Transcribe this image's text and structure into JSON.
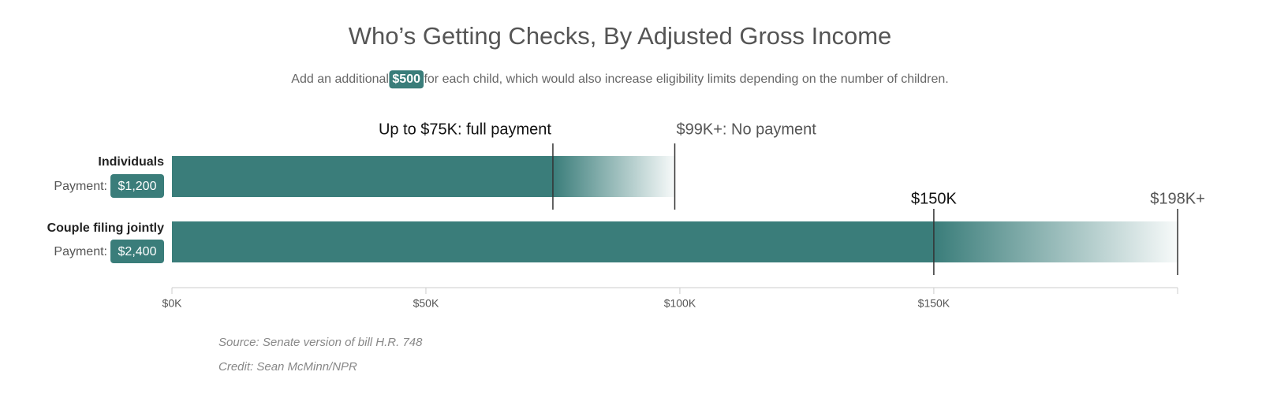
{
  "chart_data": {
    "type": "phaseout-bar",
    "title": "Who’s Getting Checks, By Adjusted Gross Income",
    "subtitle_parts": [
      "Add an additional",
      "$500",
      "for each child, which would also increase eligibility limits depending on the number of children."
    ],
    "payment_prefix": "Payment:",
    "categories": [
      "Individuals",
      "Couple filing jointly"
    ],
    "payments": [
      1200,
      2400
    ],
    "payment_labels": [
      "$1,200",
      "$2,400"
    ],
    "series": [
      {
        "name": "Individuals",
        "color": "#3a7d7a",
        "values": [
          75,
          99
        ],
        "value_labels": [
          "Up to $75K: full payment",
          "$99K+: No payment"
        ]
      },
      {
        "name": "Couple filing jointly",
        "color": "#3a7d7a",
        "values": [
          150,
          198
        ],
        "value_labels": [
          "$150K",
          "$198K+"
        ]
      }
    ],
    "xlim": [
      0,
      198
    ],
    "xticks": [
      {
        "value": 0,
        "label": "$0K"
      },
      {
        "value": 50,
        "label": "$50K"
      },
      {
        "value": 100,
        "label": "$100K"
      },
      {
        "value": 150,
        "label": "$150K"
      }
    ],
    "source": "Source: Senate version of bill H.R. 748",
    "credit": "Credit: Sean McMinn/NPR"
  }
}
